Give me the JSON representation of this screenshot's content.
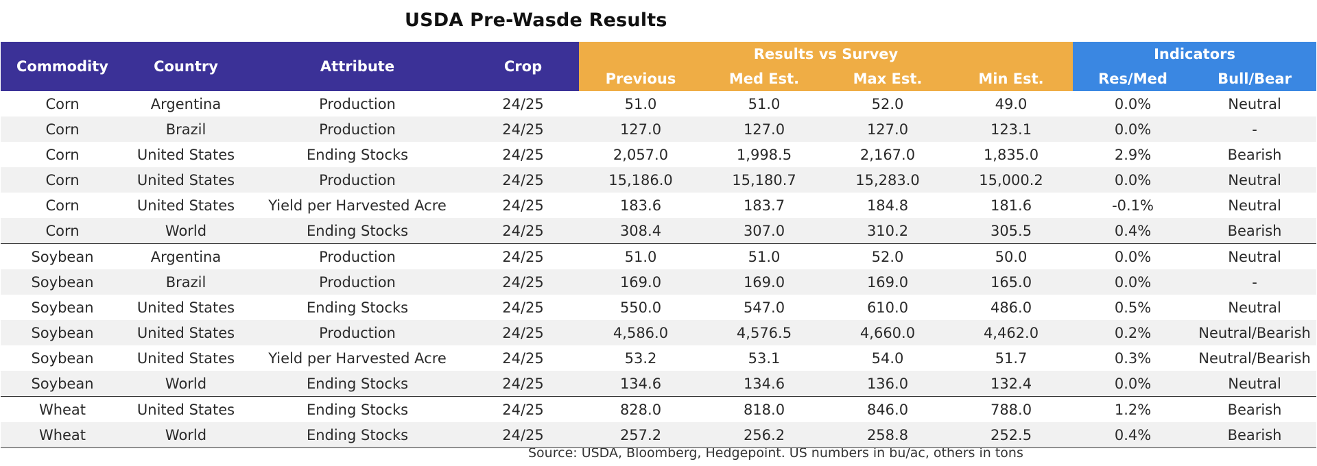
{
  "title": "USDA Pre-Wasde Results",
  "headers": {
    "commodity": "Commodity",
    "country": "Country",
    "attribute": "Attribute",
    "crop": "Crop",
    "results_vs_survey": "Results vs Survey",
    "indicators": "Indicators",
    "previous": "Previous",
    "med_est": "Med Est.",
    "max_est": "Max Est.",
    "min_est": "Min Est.",
    "res_med": "Res/Med",
    "bull_bear": "Bull/Bear"
  },
  "colors": {
    "header_purple": "#3b3197",
    "header_orange": "#efad45",
    "header_blue": "#3a87e2"
  },
  "rows": [
    {
      "commodity": "Corn",
      "country": "Argentina",
      "attribute": "Production",
      "crop": "24/25",
      "previous": "51.0",
      "med": "51.0",
      "max": "52.0",
      "min": "49.0",
      "res_med": "0.0%",
      "bull_bear": "Neutral"
    },
    {
      "commodity": "Corn",
      "country": "Brazil",
      "attribute": "Production",
      "crop": "24/25",
      "previous": "127.0",
      "med": "127.0",
      "max": "127.0",
      "min": "123.1",
      "res_med": "0.0%",
      "bull_bear": "-"
    },
    {
      "commodity": "Corn",
      "country": "United States",
      "attribute": "Ending Stocks",
      "crop": "24/25",
      "previous": "2,057.0",
      "med": "1,998.5",
      "max": "2,167.0",
      "min": "1,835.0",
      "res_med": "2.9%",
      "bull_bear": "Bearish"
    },
    {
      "commodity": "Corn",
      "country": "United States",
      "attribute": "Production",
      "crop": "24/25",
      "previous": "15,186.0",
      "med": "15,180.7",
      "max": "15,283.0",
      "min": "15,000.2",
      "res_med": "0.0%",
      "bull_bear": "Neutral"
    },
    {
      "commodity": "Corn",
      "country": "United States",
      "attribute": "Yield per Harvested Acre",
      "crop": "24/25",
      "previous": "183.6",
      "med": "183.7",
      "max": "184.8",
      "min": "181.6",
      "res_med": "-0.1%",
      "bull_bear": "Neutral"
    },
    {
      "commodity": "Corn",
      "country": "World",
      "attribute": "Ending Stocks",
      "crop": "24/25",
      "previous": "308.4",
      "med": "307.0",
      "max": "310.2",
      "min": "305.5",
      "res_med": "0.4%",
      "bull_bear": "Bearish"
    },
    {
      "commodity": "Soybean",
      "country": "Argentina",
      "attribute": "Production",
      "crop": "24/25",
      "previous": "51.0",
      "med": "51.0",
      "max": "52.0",
      "min": "50.0",
      "res_med": "0.0%",
      "bull_bear": "Neutral"
    },
    {
      "commodity": "Soybean",
      "country": "Brazil",
      "attribute": "Production",
      "crop": "24/25",
      "previous": "169.0",
      "med": "169.0",
      "max": "169.0",
      "min": "165.0",
      "res_med": "0.0%",
      "bull_bear": "-"
    },
    {
      "commodity": "Soybean",
      "country": "United States",
      "attribute": "Ending Stocks",
      "crop": "24/25",
      "previous": "550.0",
      "med": "547.0",
      "max": "610.0",
      "min": "486.0",
      "res_med": "0.5%",
      "bull_bear": "Neutral"
    },
    {
      "commodity": "Soybean",
      "country": "United States",
      "attribute": "Production",
      "crop": "24/25",
      "previous": "4,586.0",
      "med": "4,576.5",
      "max": "4,660.0",
      "min": "4,462.0",
      "res_med": "0.2%",
      "bull_bear": "Neutral/Bearish"
    },
    {
      "commodity": "Soybean",
      "country": "United States",
      "attribute": "Yield per Harvested Acre",
      "crop": "24/25",
      "previous": "53.2",
      "med": "53.1",
      "max": "54.0",
      "min": "51.7",
      "res_med": "0.3%",
      "bull_bear": "Neutral/Bearish"
    },
    {
      "commodity": "Soybean",
      "country": "World",
      "attribute": "Ending Stocks",
      "crop": "24/25",
      "previous": "134.6",
      "med": "134.6",
      "max": "136.0",
      "min": "132.4",
      "res_med": "0.0%",
      "bull_bear": "Neutral"
    },
    {
      "commodity": "Wheat",
      "country": "United States",
      "attribute": "Ending Stocks",
      "crop": "24/25",
      "previous": "828.0",
      "med": "818.0",
      "max": "846.0",
      "min": "788.0",
      "res_med": "1.2%",
      "bull_bear": "Bearish"
    },
    {
      "commodity": "Wheat",
      "country": "World",
      "attribute": "Ending Stocks",
      "crop": "24/25",
      "previous": "257.2",
      "med": "256.2",
      "max": "258.8",
      "min": "252.5",
      "res_med": "0.4%",
      "bull_bear": "Bearish"
    }
  ],
  "source": "Source: USDA, Bloomberg, Hedgepoint. US numbers in bu/ac, others in tons"
}
